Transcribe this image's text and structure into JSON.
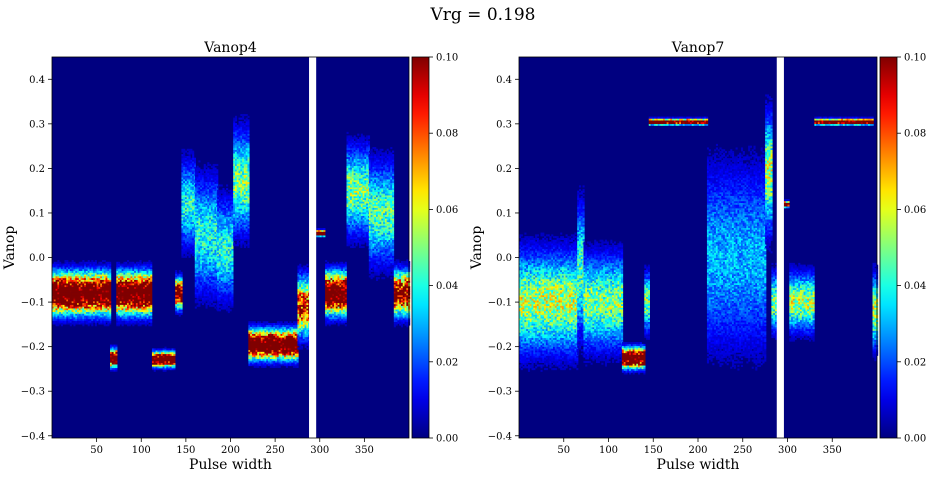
{
  "figure": {
    "suptitle": "Vrg = 0.198"
  },
  "chart_data": [
    {
      "type": "heatmap",
      "title": "Vanop4",
      "xlabel": "Pulse width",
      "ylabel": "Vanop",
      "xlim": [
        0,
        400
      ],
      "ylim": [
        -0.405,
        0.45
      ],
      "x_ticks": [
        50,
        100,
        150,
        200,
        250,
        300,
        350
      ],
      "y_ticks": [
        -0.4,
        -0.3,
        -0.2,
        -0.1,
        0.0,
        0.1,
        0.2,
        0.3,
        0.4
      ],
      "y_tick_labels": [
        "−0.4",
        "−0.3",
        "−0.2",
        "−0.1",
        "0.0",
        "0.1",
        "0.2",
        "0.3",
        "0.4"
      ],
      "gap": [
        288,
        296
      ],
      "colorbar": {
        "min": 0.0,
        "max": 0.1,
        "colormap": "jet",
        "ticks": [
          0.0,
          0.02,
          0.04,
          0.06,
          0.08,
          0.1
        ],
        "tick_labels": [
          "0.00",
          "0.02",
          "0.04",
          "0.06",
          "0.08",
          "0.10"
        ]
      },
      "segments": [
        {
          "x": [
            0,
            30
          ],
          "center": -0.08,
          "width": 0.028,
          "peak": 0.14
        },
        {
          "x": [
            30,
            65
          ],
          "center": -0.08,
          "width": 0.028,
          "peak": 0.14
        },
        {
          "x": [
            65,
            72
          ],
          "center": -0.225,
          "width": 0.012,
          "peak": 0.14
        },
        {
          "x": [
            72,
            112
          ],
          "center": -0.08,
          "width": 0.028,
          "peak": 0.14
        },
        {
          "x": [
            112,
            138
          ],
          "center": -0.228,
          "width": 0.01,
          "peak": 0.14
        },
        {
          "x": [
            138,
            145
          ],
          "center": -0.08,
          "width": 0.02,
          "peak": 0.12
        },
        {
          "x": [
            145,
            160
          ],
          "center": 0.12,
          "width": 0.06,
          "peak": 0.04
        },
        {
          "x": [
            160,
            185
          ],
          "center": 0.05,
          "width": 0.08,
          "peak": 0.04
        },
        {
          "x": [
            185,
            203
          ],
          "center": 0.02,
          "width": 0.07,
          "peak": 0.04
        },
        {
          "x": [
            203,
            220
          ],
          "center": 0.17,
          "width": 0.07,
          "peak": 0.05
        },
        {
          "x": [
            220,
            275
          ],
          "center": -0.195,
          "width": 0.02,
          "peak": 0.14
        },
        {
          "x": [
            275,
            288
          ],
          "center": -0.11,
          "width": 0.04,
          "peak": 0.09
        },
        {
          "x": [
            296,
            306
          ],
          "center": 0.055,
          "width": 0.004,
          "peak": 0.14
        },
        {
          "x": [
            306,
            330
          ],
          "center": -0.08,
          "width": 0.028,
          "peak": 0.14
        },
        {
          "x": [
            330,
            355
          ],
          "center": 0.15,
          "width": 0.06,
          "peak": 0.05
        },
        {
          "x": [
            355,
            383
          ],
          "center": 0.1,
          "width": 0.07,
          "peak": 0.045
        },
        {
          "x": [
            383,
            400
          ],
          "center": -0.08,
          "width": 0.03,
          "peak": 0.11
        }
      ]
    },
    {
      "type": "heatmap",
      "title": "Vanop7",
      "xlabel": "Pulse width",
      "ylabel": "Vanop",
      "xlim": [
        0,
        400
      ],
      "ylim": [
        -0.405,
        0.45
      ],
      "x_ticks": [
        50,
        100,
        150,
        200,
        250,
        300,
        350
      ],
      "y_ticks": [
        -0.4,
        -0.3,
        -0.2,
        -0.1,
        0.0,
        0.1,
        0.2,
        0.3,
        0.4
      ],
      "y_tick_labels": [
        "−0.4",
        "−0.3",
        "−0.2",
        "−0.1",
        "0.0",
        "0.1",
        "0.2",
        "0.3",
        "0.4"
      ],
      "gap": [
        288,
        296
      ],
      "colorbar": {
        "min": 0.0,
        "max": 0.1,
        "colormap": "jet",
        "ticks": [
          0.0,
          0.02,
          0.04,
          0.06,
          0.08,
          0.1
        ],
        "tick_labels": [
          "0.00",
          "0.02",
          "0.04",
          "0.06",
          "0.08",
          "0.10"
        ]
      },
      "segments": [
        {
          "x": [
            0,
            65
          ],
          "center": -0.1,
          "width": 0.07,
          "peak": 0.055
        },
        {
          "x": [
            65,
            72
          ],
          "center": -0.03,
          "width": 0.09,
          "peak": 0.045
        },
        {
          "x": [
            72,
            115
          ],
          "center": -0.1,
          "width": 0.065,
          "peak": 0.05
        },
        {
          "x": [
            115,
            140
          ],
          "center": -0.225,
          "width": 0.014,
          "peak": 0.14
        },
        {
          "x": [
            140,
            145
          ],
          "center": -0.1,
          "width": 0.04,
          "peak": 0.05
        },
        {
          "x": [
            145,
            210
          ],
          "center": 0.305,
          "width": 0.004,
          "peak": 0.14
        },
        {
          "x": [
            210,
            275
          ],
          "center": 0.0,
          "width": 0.13,
          "peak": 0.03
        },
        {
          "x": [
            275,
            282
          ],
          "center": 0.19,
          "width": 0.08,
          "peak": 0.055
        },
        {
          "x": [
            282,
            288
          ],
          "center": -0.1,
          "width": 0.04,
          "peak": 0.05
        },
        {
          "x": [
            296,
            302
          ],
          "center": 0.12,
          "width": 0.004,
          "peak": 0.14
        },
        {
          "x": [
            302,
            330
          ],
          "center": -0.1,
          "width": 0.04,
          "peak": 0.055
        },
        {
          "x": [
            330,
            395
          ],
          "center": 0.305,
          "width": 0.004,
          "peak": 0.14
        },
        {
          "x": [
            395,
            400
          ],
          "center": -0.12,
          "width": 0.05,
          "peak": 0.055
        }
      ]
    }
  ]
}
